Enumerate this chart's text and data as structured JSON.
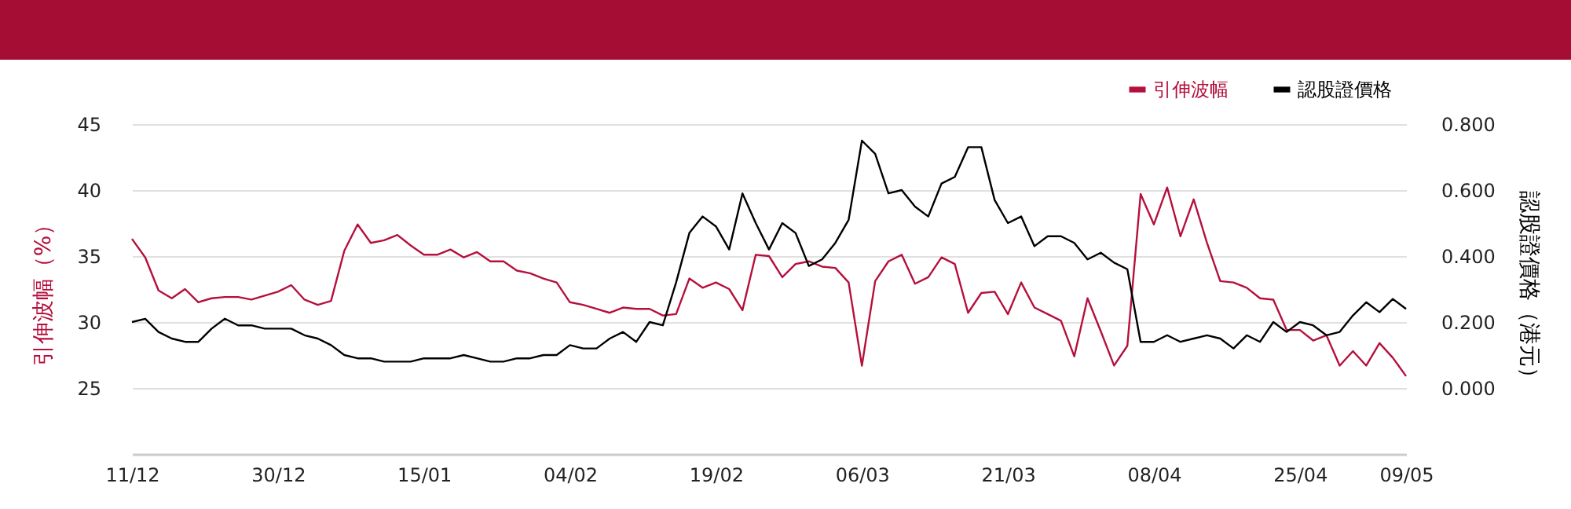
{
  "chart_data": {
    "type": "line",
    "categories": [
      "11/12",
      null,
      null,
      null,
      null,
      null,
      null,
      null,
      null,
      null,
      null,
      "30/12",
      null,
      null,
      null,
      null,
      null,
      null,
      null,
      null,
      null,
      null,
      "15/01",
      null,
      null,
      null,
      null,
      null,
      null,
      null,
      null,
      null,
      null,
      "04/02",
      null,
      null,
      null,
      null,
      null,
      null,
      null,
      null,
      null,
      null,
      "19/02",
      null,
      null,
      null,
      null,
      null,
      null,
      null,
      null,
      null,
      null,
      "06/03",
      null,
      null,
      null,
      null,
      null,
      null,
      null,
      null,
      null,
      null,
      "21/03",
      null,
      null,
      null,
      null,
      null,
      null,
      null,
      null,
      null,
      null,
      "08/04",
      null,
      null,
      null,
      null,
      null,
      null,
      null,
      null,
      null,
      null,
      "25/04",
      null,
      null,
      null,
      null,
      null,
      null,
      null,
      "09/05"
    ],
    "series": [
      {
        "name": "引伸波幅",
        "color": "#b5103c",
        "values": [
          36.3,
          34.9,
          32.4,
          31.8,
          32.5,
          31.5,
          31.8,
          31.9,
          31.9,
          31.7,
          32.0,
          32.3,
          32.8,
          31.7,
          31.3,
          31.6,
          35.4,
          37.4,
          36.0,
          36.2,
          36.6,
          35.8,
          35.1,
          35.1,
          35.5,
          34.9,
          35.3,
          34.6,
          34.6,
          33.9,
          33.7,
          33.3,
          33.0,
          31.5,
          31.3,
          31.0,
          30.7,
          31.1,
          31.0,
          31.0,
          30.5,
          30.6,
          33.3,
          32.6,
          33.0,
          32.5,
          30.9,
          35.1,
          35.0,
          33.4,
          34.4,
          34.6,
          34.2,
          34.1,
          33.0,
          26.7,
          33.1,
          34.6,
          35.1,
          32.9,
          33.4,
          34.9,
          34.4,
          30.7,
          32.2,
          32.3,
          30.6,
          33.0,
          31.1,
          30.6,
          30.1,
          27.4,
          31.8,
          29.3,
          26.7,
          28.2,
          39.7,
          37.4,
          40.2,
          36.5,
          39.3,
          36.0,
          33.1,
          33.0,
          32.6,
          31.8,
          31.7,
          29.4,
          29.4,
          28.6,
          29.0,
          26.7,
          27.8,
          26.7,
          28.4,
          27.3,
          25.9
        ]
      },
      {
        "name": "認股證價格",
        "color": "#000000",
        "axis": "y2",
        "values": [
          0.2,
          0.21,
          0.17,
          0.15,
          0.14,
          0.14,
          0.18,
          0.21,
          0.19,
          0.19,
          0.18,
          0.18,
          0.18,
          0.16,
          0.15,
          0.13,
          0.1,
          0.09,
          0.09,
          0.08,
          0.08,
          0.08,
          0.09,
          0.09,
          0.09,
          0.1,
          0.09,
          0.08,
          0.08,
          0.09,
          0.09,
          0.1,
          0.1,
          0.13,
          0.12,
          0.12,
          0.15,
          0.17,
          0.14,
          0.2,
          0.19,
          0.32,
          0.47,
          0.52,
          0.49,
          0.42,
          0.59,
          0.5,
          0.42,
          0.5,
          0.47,
          0.37,
          0.39,
          0.44,
          0.51,
          0.75,
          0.71,
          0.59,
          0.6,
          0.55,
          0.52,
          0.62,
          0.64,
          0.73,
          0.73,
          0.57,
          0.5,
          0.52,
          0.43,
          0.46,
          0.46,
          0.44,
          0.39,
          0.41,
          0.38,
          0.36,
          0.14,
          0.14,
          0.16,
          0.14,
          0.15,
          0.16,
          0.15,
          0.12,
          0.16,
          0.14,
          0.2,
          0.17,
          0.2,
          0.19,
          0.16,
          0.17,
          0.22,
          0.26,
          0.23,
          0.27,
          0.24
        ]
      }
    ],
    "ylabel": "引伸波幅（%）",
    "y2label": "認股證價格（港元）",
    "ylim": [
      20,
      45
    ],
    "yticks": [
      25,
      30,
      35,
      40,
      45
    ],
    "y2lim": [
      -0.2,
      0.8
    ],
    "y2ticks": [
      {
        "value": 0,
        "label": "0.000"
      },
      {
        "value": 0.2,
        "label": "0.200"
      },
      {
        "value": 0.4,
        "label": "0.400"
      },
      {
        "value": 0.6,
        "label": "0.600"
      },
      {
        "value": 0.8,
        "label": "0.800"
      }
    ],
    "grid": "y",
    "legend": "top right",
    "line_style": "solid",
    "marker": "none"
  }
}
